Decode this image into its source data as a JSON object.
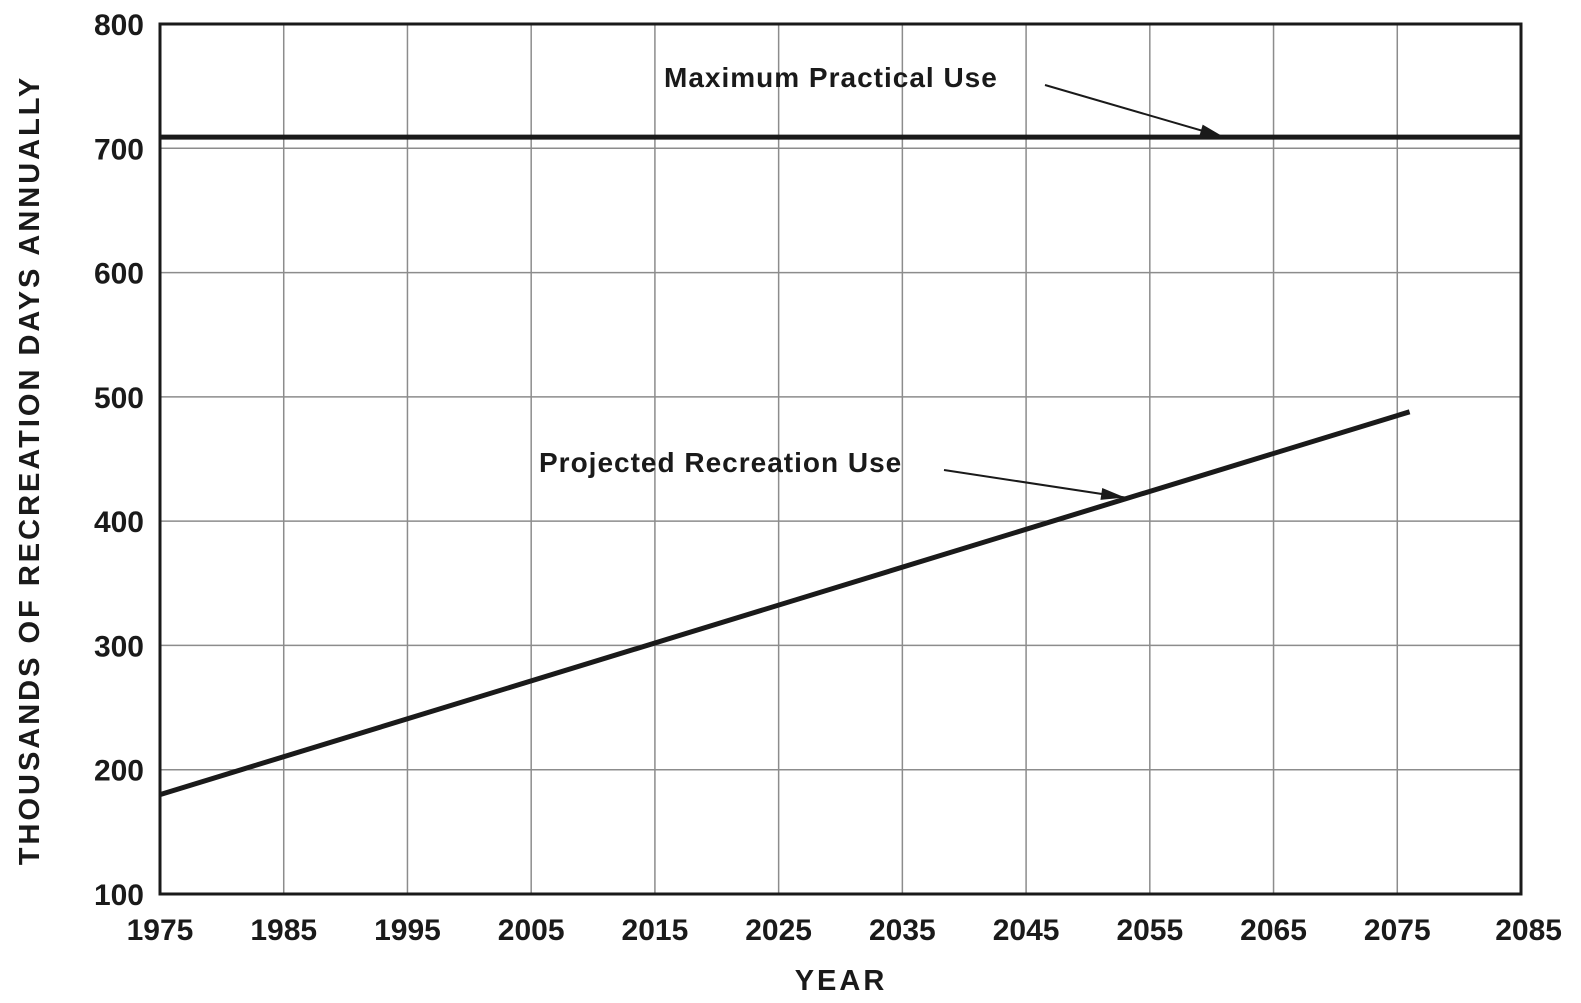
{
  "chart_data": {
    "type": "line",
    "title": "",
    "xlabel": "YEAR",
    "ylabel": "THOUSANDS OF RECREATION DAYS ANNUALLY",
    "xlim": [
      1975,
      2085
    ],
    "ylim": [
      100,
      800
    ],
    "x_ticks": [
      1975,
      1985,
      1995,
      2005,
      2015,
      2025,
      2035,
      2045,
      2055,
      2065,
      2075,
      2085
    ],
    "y_ticks": [
      100,
      200,
      300,
      400,
      500,
      600,
      700,
      800
    ],
    "grid": true,
    "legend": "none",
    "series": [
      {
        "name": "Maximum Practical Use",
        "x": [
          1975,
          2085
        ],
        "y": [
          709,
          709
        ]
      },
      {
        "name": "Projected Recreation Use",
        "x": [
          1975,
          2076
        ],
        "y": [
          180,
          488
        ]
      }
    ],
    "annotations": [
      {
        "text": "Maximum Practical Use",
        "series": 0,
        "arrow_to": [
          2061,
          709
        ]
      },
      {
        "text": "Projected Recreation Use",
        "series": 1,
        "arrow_to": [
          2053,
          419
        ]
      }
    ],
    "colors": {
      "line": "#1a1a1a",
      "grid": "#8c8c8c",
      "frame": "#1a1a1a"
    }
  }
}
